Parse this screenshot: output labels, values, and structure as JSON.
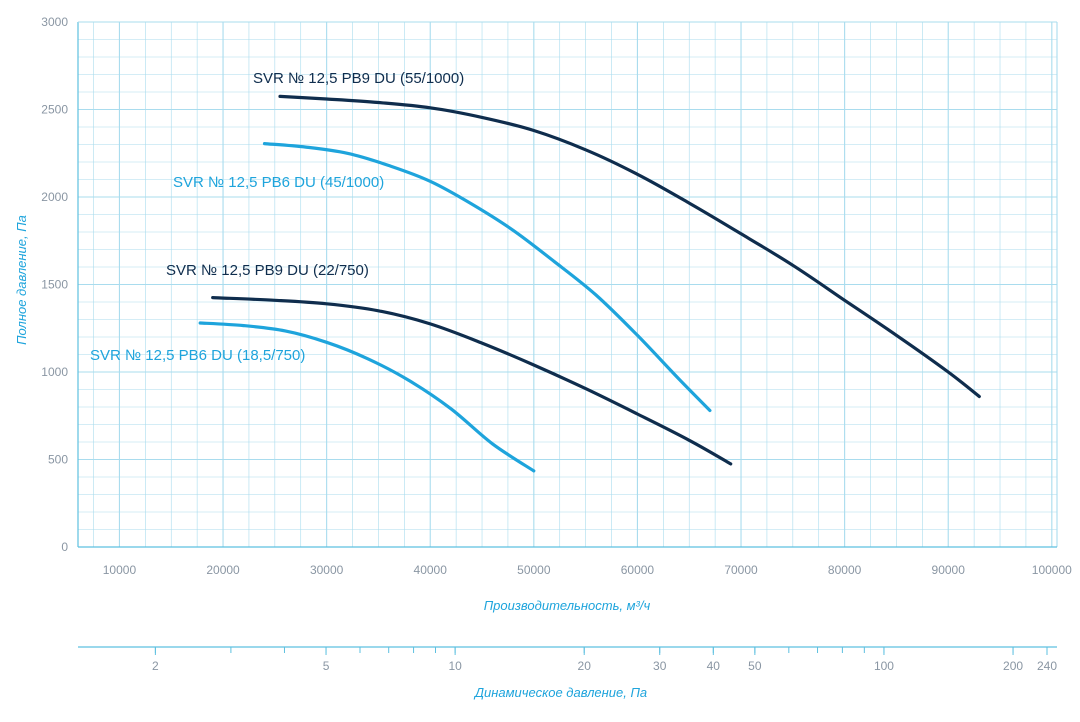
{
  "chart_data": {
    "type": "line",
    "xlabel": "Производительность, м³/ч",
    "ylabel": "Полное давление, Па",
    "x2label": "Динамическое давление, Па",
    "xlim": [
      6000,
      100500
    ],
    "ylim": [
      0,
      3000
    ],
    "xticks": [
      10000,
      20000,
      30000,
      40000,
      50000,
      60000,
      70000,
      80000,
      90000,
      100000
    ],
    "yticks": [
      0,
      500,
      1000,
      1500,
      2000,
      2500,
      3000
    ],
    "x2_scale": "log",
    "x2ticks": [
      2,
      5,
      10,
      20,
      30,
      40,
      50,
      100,
      200,
      240
    ],
    "grid": true,
    "colors": {
      "grid": "#a9dcee",
      "axis": "#5ec0e0",
      "dark": "#0f2d4d",
      "light": "#1ea4dc"
    },
    "series": [
      {
        "name": "SVR № 12,5 PB9 DU (55/1000)",
        "color": "#0f2d4d",
        "x": [
          25500,
          30000,
          35000,
          40000,
          45000,
          50000,
          55000,
          60000,
          65000,
          70000,
          75000,
          80000,
          85000,
          90000,
          93000
        ],
        "y": [
          2575,
          2560,
          2540,
          2510,
          2455,
          2380,
          2270,
          2130,
          1965,
          1790,
          1610,
          1410,
          1210,
          1000,
          860
        ]
      },
      {
        "name": "SVR № 12,5 PB6 DU (45/1000)",
        "color": "#1ea4dc",
        "x": [
          24000,
          28000,
          32000,
          36000,
          40000,
          44000,
          48000,
          52000,
          56000,
          60000,
          64000,
          67000
        ],
        "y": [
          2305,
          2285,
          2250,
          2180,
          2090,
          1960,
          1810,
          1630,
          1440,
          1210,
          960,
          780
        ]
      },
      {
        "name": "SVR № 12,5 PB9 DU (22/750)",
        "color": "#0f2d4d",
        "x": [
          19000,
          25000,
          30000,
          35000,
          40000,
          45000,
          50000,
          55000,
          60000,
          65000,
          69000
        ],
        "y": [
          1425,
          1410,
          1390,
          1350,
          1275,
          1165,
          1040,
          905,
          760,
          610,
          475
        ]
      },
      {
        "name": "SVR № 12,5 PB6 DU (18,5/750)",
        "color": "#1ea4dc",
        "x": [
          17800,
          22000,
          26000,
          30000,
          34000,
          38000,
          42000,
          46000,
          50000
        ],
        "y": [
          1280,
          1265,
          1235,
          1170,
          1075,
          950,
          790,
          590,
          435
        ]
      }
    ]
  }
}
